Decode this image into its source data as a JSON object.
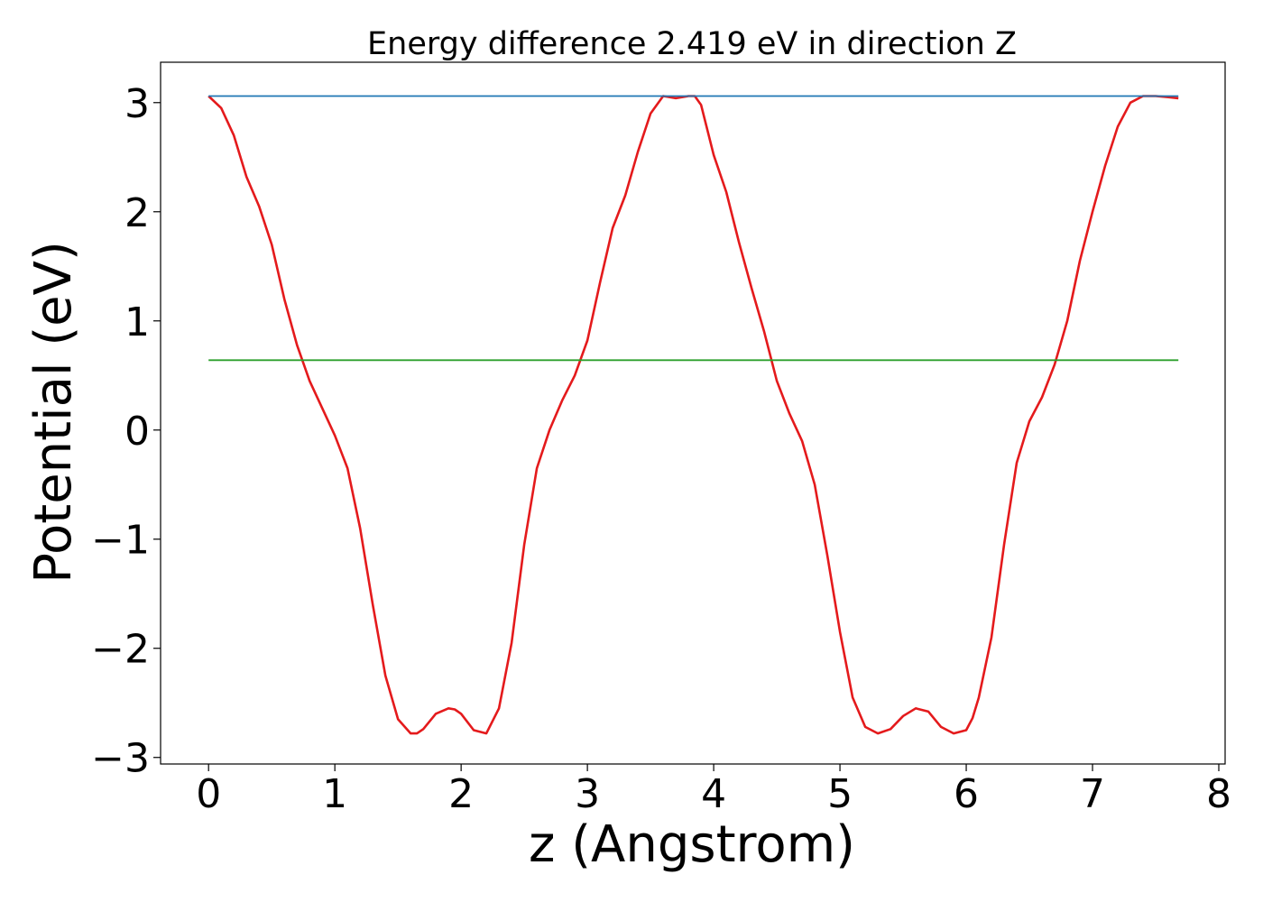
{
  "chart_data": {
    "type": "line",
    "title": "Energy difference 2.419 eV in direction Z",
    "xlabel": "z (Angstrom)",
    "ylabel": "Potential (eV)",
    "xlim": [
      -0.38,
      8.05
    ],
    "ylim": [
      -3.06,
      3.37
    ],
    "xticks": [
      0,
      1,
      2,
      3,
      4,
      5,
      6,
      7,
      8
    ],
    "yticks": [
      -3,
      -2,
      -1,
      0,
      1,
      2,
      3
    ],
    "grid": false,
    "legend": "none",
    "series": [
      {
        "color": "#e41a1c",
        "x": [
          0.0,
          0.1,
          0.2,
          0.3,
          0.4,
          0.5,
          0.6,
          0.7,
          0.8,
          0.9,
          1.0,
          1.1,
          1.2,
          1.3,
          1.4,
          1.5,
          1.6,
          1.65,
          1.7,
          1.8,
          1.9,
          1.95,
          2.0,
          2.1,
          2.2,
          2.3,
          2.4,
          2.5,
          2.6,
          2.7,
          2.8,
          2.9,
          3.0,
          3.1,
          3.2,
          3.3,
          3.4,
          3.5,
          3.6,
          3.7,
          3.8,
          3.85,
          3.9,
          4.0,
          4.1,
          4.2,
          4.3,
          4.4,
          4.5,
          4.6,
          4.7,
          4.8,
          4.9,
          5.0,
          5.1,
          5.2,
          5.3,
          5.4,
          5.5,
          5.6,
          5.7,
          5.8,
          5.9,
          6.0,
          6.05,
          6.1,
          6.2,
          6.3,
          6.4,
          6.5,
          6.6,
          6.7,
          6.8,
          6.9,
          7.0,
          7.1,
          7.2,
          7.3,
          7.4,
          7.5,
          7.6,
          7.68
        ],
        "y": [
          3.06,
          2.95,
          2.7,
          2.32,
          2.05,
          1.7,
          1.2,
          0.78,
          0.45,
          0.2,
          -0.05,
          -0.35,
          -0.9,
          -1.6,
          -2.25,
          -2.65,
          -2.78,
          -2.78,
          -2.74,
          -2.6,
          -2.55,
          -2.56,
          -2.6,
          -2.75,
          -2.78,
          -2.55,
          -1.95,
          -1.05,
          -0.35,
          0.0,
          0.27,
          0.5,
          0.82,
          1.35,
          1.85,
          2.15,
          2.55,
          2.9,
          3.06,
          3.04,
          3.06,
          3.06,
          2.98,
          2.52,
          2.18,
          1.72,
          1.3,
          0.9,
          0.45,
          0.15,
          -0.1,
          -0.5,
          -1.15,
          -1.85,
          -2.45,
          -2.72,
          -2.78,
          -2.74,
          -2.62,
          -2.55,
          -2.58,
          -2.72,
          -2.78,
          -2.75,
          -2.64,
          -2.45,
          -1.9,
          -1.05,
          -0.3,
          0.08,
          0.3,
          0.6,
          1.0,
          1.55,
          2.0,
          2.42,
          2.78,
          3.0,
          3.06,
          3.06,
          3.05,
          3.04
        ]
      },
      {
        "color": "#1f77b4",
        "x": [
          0.0,
          7.68
        ],
        "y": [
          3.06,
          3.06
        ]
      },
      {
        "color": "#2ca02c",
        "x": [
          0.0,
          7.68
        ],
        "y": [
          0.64,
          0.64
        ]
      }
    ]
  }
}
